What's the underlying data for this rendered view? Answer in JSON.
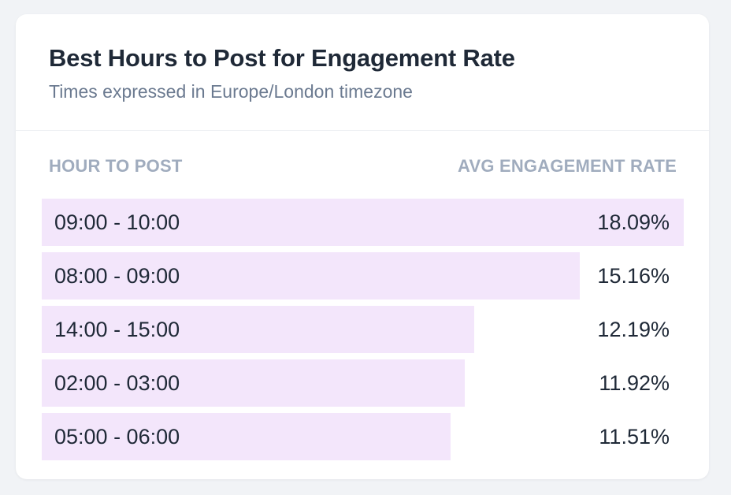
{
  "title": "Best Hours to Post for Engagement Rate",
  "subtitle": "Times expressed in Europe/London timezone",
  "columns": {
    "left": "HOUR TO POST",
    "right": "AVG ENGAGEMENT RATE"
  },
  "colors": {
    "bar": "#f3e6fb",
    "text": "#1f2937",
    "muted": "#6b7a90",
    "header": "#a0acbe"
  },
  "chart_data": {
    "type": "bar",
    "orientation": "horizontal",
    "categories": [
      "09:00 - 10:00",
      "08:00 - 09:00",
      "14:00 - 15:00",
      "02:00 - 03:00",
      "05:00 - 06:00"
    ],
    "values": [
      18.09,
      15.16,
      12.19,
      11.92,
      11.51
    ],
    "value_labels": [
      "18.09%",
      "15.16%",
      "12.19%",
      "11.92%",
      "11.51%"
    ],
    "title": "Best Hours to Post for Engagement Rate",
    "xlabel": "AVG ENGAGEMENT RATE",
    "ylabel": "HOUR TO POST",
    "grid": false
  }
}
